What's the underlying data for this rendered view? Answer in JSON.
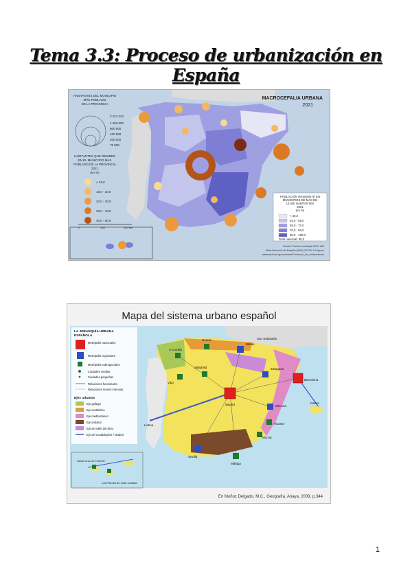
{
  "page": {
    "title": "Tema 3.3: Proceso de urbanización en España",
    "page_number": "1"
  },
  "map1": {
    "title_line1": "MACROCEFALIA URBANA",
    "title_line2": "2021",
    "legend_top": {
      "heading": [
        "HABITANTES DEL MUNICIPIO",
        "MÁS POBLADO",
        "DE LA PROVINCIA"
      ],
      "values": [
        "3 223 334",
        "1 600 000",
        "800 000",
        "400 000",
        "200 000",
        "75 000"
      ]
    },
    "legend_pct": {
      "heading": [
        "HABITANTES QUE RESIDEN",
        "EN EL MUNICIPIO MÁS",
        "POBLADO DE LA PROVINCIA",
        "2021",
        "(en %)"
      ],
      "classes": [
        "< 15,0",
        "15,0 - 20,0",
        "20,0 - 30,0",
        "30,0 - 40,0",
        "40,0 - 50,0",
        "> 50,0"
      ]
    },
    "legend_res": {
      "heading": [
        "POBLACIÓN RESIDENTE EN",
        "MUNICIPIOS DE MÁS DE",
        "10.000 HABITANTES",
        "2021",
        "(en %)"
      ],
      "classes": [
        "< 45,0",
        "45,0 - 55,0",
        "55,0 - 70,0",
        "70,0 - 80,0",
        "80,0 - 100,0"
      ],
      "total": "Total nacional: 80,2"
    },
    "scale": [
      "0",
      "100",
      "200 km"
    ],
    "source": [
      "Fuente: Padrón municipal 2021 INE",
      "Atlas Nacional de España (ANE) CC BY 4.0 ign.es",
      "atlasnacional.ign.es/wane/Procesos_de_urbanización"
    ],
    "colors": {
      "sea": "#c2d3e6",
      "land_outside": "#dcdcdc",
      "prov_classes": [
        "#e6e6f5",
        "#c4c5ec",
        "#9fa0e2",
        "#7d7ed4",
        "#5f60c4"
      ],
      "circle_classes": [
        "#f7dc8e",
        "#f4b860",
        "#ec9a3c",
        "#db7a25",
        "#b45418",
        "#7a2c14"
      ]
    }
  },
  "map2": {
    "title": "Mapa del sistema urbano español",
    "legend": {
      "heading": [
        "LA JERARQUÍA URBANA",
        "ESPAÑOLA"
      ],
      "items": [
        "Metrópolis nacionales",
        "Metrópolis regionales",
        "Metrópolis subregionales",
        "Ciudades medias",
        "Ciudades pequeñas",
        "Relaciones funcionales",
        "Relaciones menos intensas"
      ],
      "axes_heading": "Ejes urbanos",
      "axes": [
        "Eje gallego",
        "Eje cantábrico",
        "Eje mediterráneo",
        "Eje andaluz",
        "Eje del valle del Ebro",
        "Eje del Guadalquivir / Madrid"
      ]
    },
    "cities": [
      "A Coruña",
      "Oviedo",
      "Bilbao",
      "San Sebastián",
      "Vigo",
      "Valladolid",
      "Zaragoza",
      "Barcelona",
      "Madrid",
      "Valencia",
      "Alicante",
      "Murcia",
      "Sevilla",
      "Málaga",
      "Palma",
      "Lisboa",
      "Las Palmas de Gran Canaria",
      "Santa Cruz de Tenerife"
    ],
    "caption": "En Muñoz Delgado, M.C., Geografía, Anaya, 2009, p.344",
    "colors": {
      "yellow": "#f3e25c",
      "orange": "#e79a3a",
      "pink": "#e08ac6",
      "brown": "#7a4a2a",
      "green": "#a8c85a",
      "national": "#e02020",
      "regional": "#2a4ec0",
      "sub": "#1e7a2e",
      "axis_line": "#3a5ac8"
    }
  }
}
